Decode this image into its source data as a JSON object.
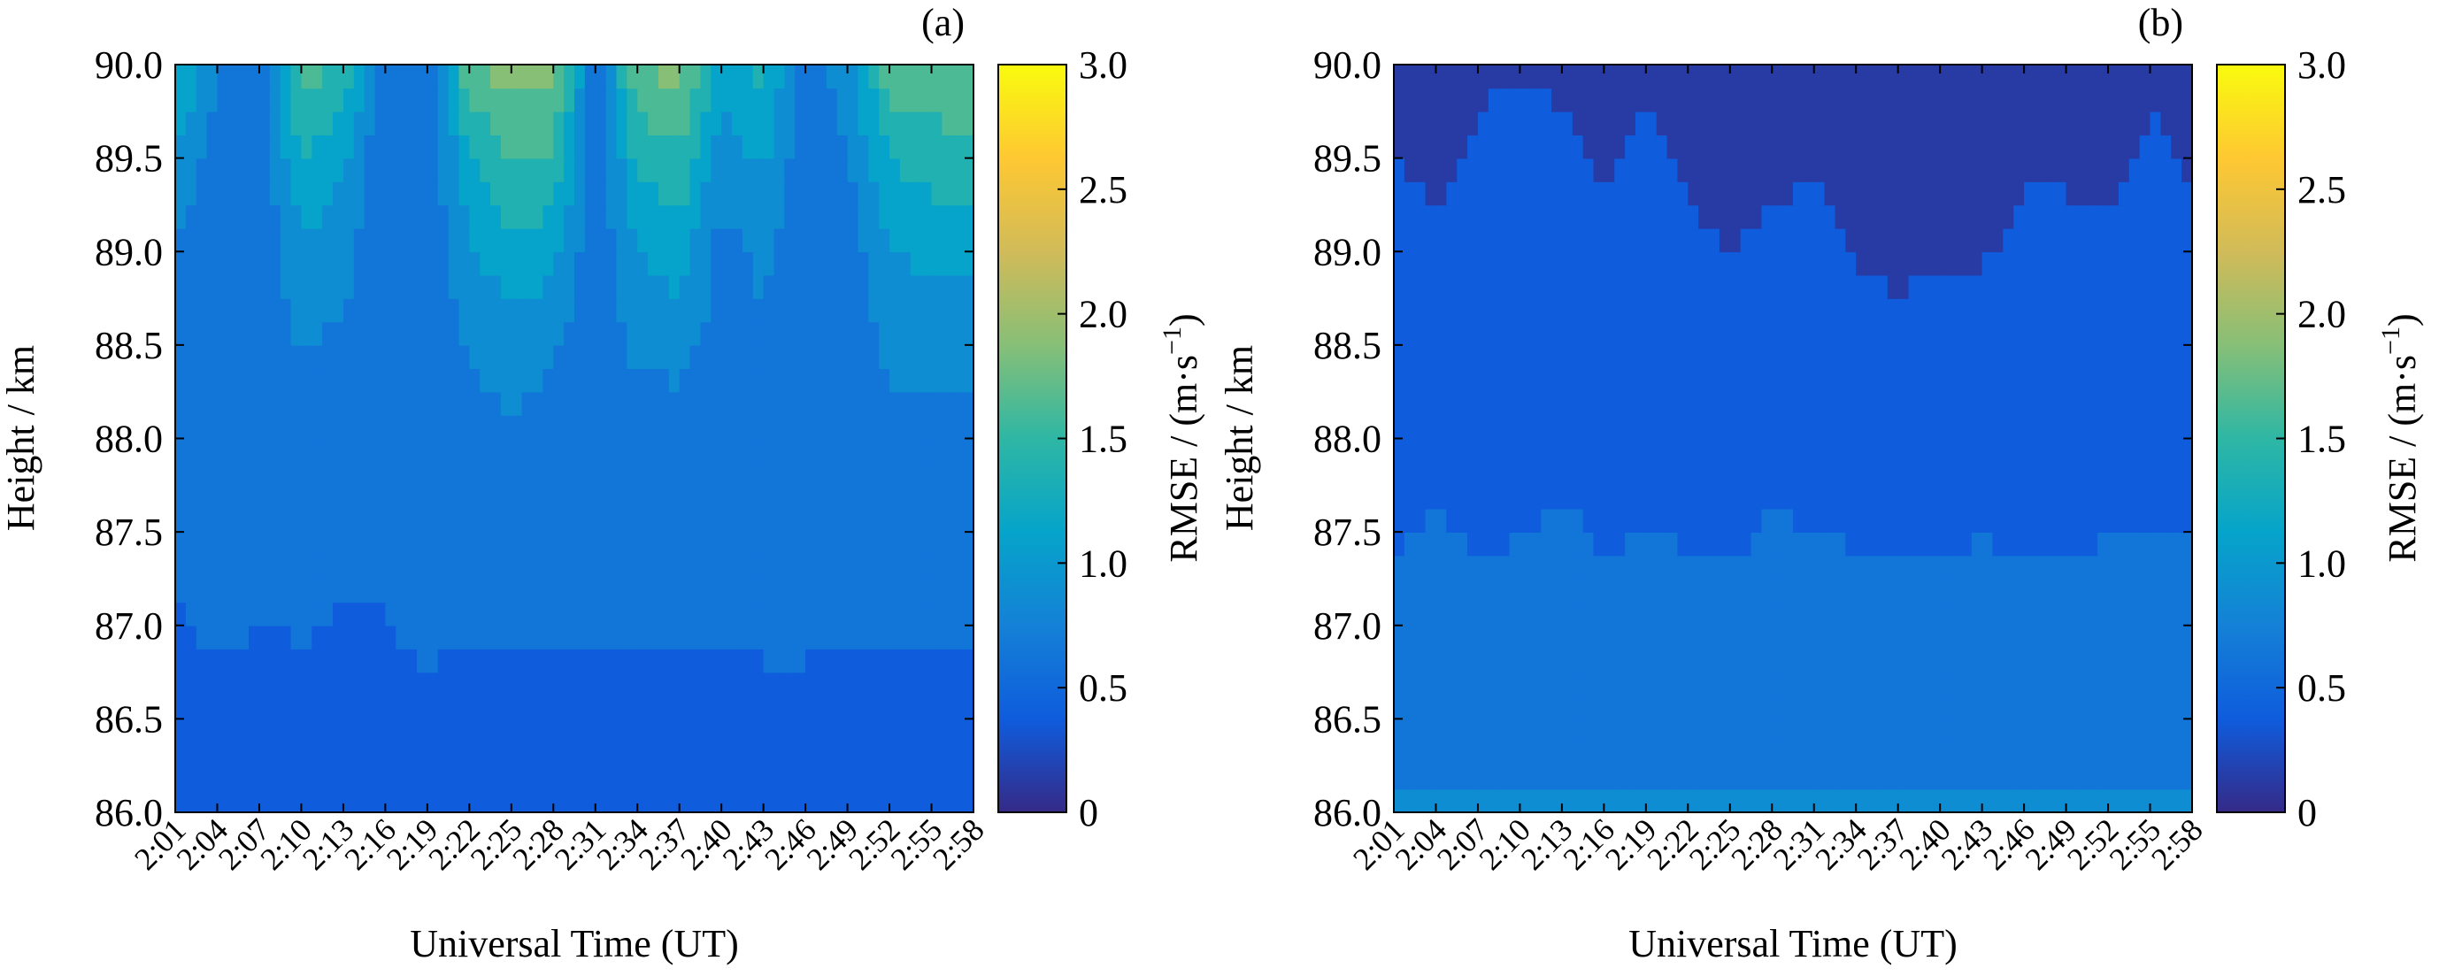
{
  "colormap": [
    "#352a87",
    "#0f5cdd",
    "#1481d6",
    "#06a4ca",
    "#2eb7a4",
    "#87bf77",
    "#d1bb59",
    "#fec832",
    "#f9fb0e"
  ],
  "chart_data": [
    {
      "type": "heatmap",
      "panel_label": "(a)",
      "xlabel": "Universal Time (UT)",
      "ylabel": "Height / km",
      "colorbar_label": "RMSE / (m·s",
      "colorbar_superscript": "−1",
      "colorbar_suffix": ")",
      "x": [
        "2:01",
        "2:04",
        "2:07",
        "2:10",
        "2:13",
        "2:16",
        "2:19",
        "2:22",
        "2:25",
        "2:28",
        "2:31",
        "2:34",
        "2:37",
        "2:40",
        "2:43",
        "2:46",
        "2:49",
        "2:52",
        "2:55",
        "2:58"
      ],
      "y": [
        86.0,
        86.5,
        87.0,
        87.5,
        88.0,
        88.5,
        89.0,
        89.5,
        90.0
      ],
      "yticklabels": [
        "86.0",
        "86.5",
        "87.0",
        "87.5",
        "88.0",
        "88.5",
        "89.0",
        "89.5",
        "90.0"
      ],
      "ylim": [
        86.0,
        90.0
      ],
      "clim": [
        0,
        3.0
      ],
      "cticks": [
        0,
        0.5,
        1.0,
        1.5,
        2.0,
        2.5,
        3.0
      ],
      "cticklabels": [
        "0",
        "0.5",
        "1.0",
        "1.5",
        "2.0",
        "2.5",
        "3.0"
      ],
      "z": [
        [
          0.35,
          0.36,
          0.35,
          0.35,
          0.35,
          0.35,
          0.36,
          0.35,
          0.35,
          0.35,
          0.35,
          0.35,
          0.35,
          0.36,
          0.35,
          0.35,
          0.35,
          0.35,
          0.35,
          0.35
        ],
        [
          0.38,
          0.4,
          0.39,
          0.4,
          0.38,
          0.39,
          0.45,
          0.4,
          0.41,
          0.4,
          0.39,
          0.4,
          0.42,
          0.4,
          0.42,
          0.42,
          0.42,
          0.42,
          0.41,
          0.41
        ],
        [
          0.48,
          0.55,
          0.5,
          0.52,
          0.48,
          0.5,
          0.55,
          0.52,
          0.53,
          0.52,
          0.52,
          0.55,
          0.53,
          0.52,
          0.55,
          0.55,
          0.52,
          0.55,
          0.53,
          0.55
        ],
        [
          0.52,
          0.56,
          0.55,
          0.56,
          0.55,
          0.5,
          0.55,
          0.56,
          0.55,
          0.58,
          0.56,
          0.58,
          0.58,
          0.56,
          0.58,
          0.58,
          0.56,
          0.58,
          0.58,
          0.58
        ],
        [
          0.55,
          0.56,
          0.55,
          0.66,
          0.55,
          0.5,
          0.56,
          0.62,
          0.68,
          0.62,
          0.55,
          0.63,
          0.64,
          0.6,
          0.6,
          0.56,
          0.56,
          0.66,
          0.64,
          0.64
        ],
        [
          0.58,
          0.55,
          0.55,
          0.76,
          0.7,
          0.5,
          0.55,
          0.78,
          0.92,
          0.8,
          0.55,
          0.8,
          0.82,
          0.62,
          0.7,
          0.56,
          0.56,
          0.82,
          0.86,
          0.86
        ],
        [
          0.7,
          0.55,
          0.55,
          0.95,
          0.85,
          0.5,
          0.55,
          0.95,
          1.15,
          1.1,
          0.55,
          1.0,
          1.15,
          0.66,
          0.82,
          0.56,
          0.6,
          0.98,
          1.08,
          1.08
        ],
        [
          0.95,
          0.6,
          0.55,
          1.25,
          1.05,
          0.5,
          0.55,
          1.2,
          1.5,
          1.48,
          0.55,
          1.3,
          1.45,
          0.85,
          1.05,
          0.56,
          0.72,
          1.25,
          1.35,
          1.4
        ],
        [
          1.35,
          0.8,
          0.55,
          1.65,
          1.45,
          0.5,
          0.55,
          1.7,
          1.9,
          1.85,
          0.55,
          1.75,
          1.85,
          1.1,
          1.35,
          0.56,
          0.9,
          1.65,
          1.7,
          1.75
        ]
      ]
    },
    {
      "type": "heatmap",
      "panel_label": "(b)",
      "xlabel": "Universal Time (UT)",
      "ylabel": "Height / km",
      "colorbar_label": "RMSE / (m·s",
      "colorbar_superscript": "−1",
      "colorbar_suffix": ")",
      "x": [
        "2:01",
        "2:04",
        "2:07",
        "2:10",
        "2:13",
        "2:16",
        "2:19",
        "2:22",
        "2:25",
        "2:28",
        "2:31",
        "2:34",
        "2:37",
        "2:40",
        "2:43",
        "2:46",
        "2:49",
        "2:52",
        "2:55",
        "2:58"
      ],
      "y": [
        86.0,
        86.5,
        87.0,
        87.5,
        88.0,
        88.5,
        89.0,
        89.5,
        90.0
      ],
      "yticklabels": [
        "86.0",
        "86.5",
        "87.0",
        "87.5",
        "88.0",
        "88.5",
        "89.0",
        "89.5",
        "90.0"
      ],
      "ylim": [
        86.0,
        90.0
      ],
      "clim": [
        0,
        3.0
      ],
      "cticks": [
        0,
        0.5,
        1.0,
        1.5,
        2.0,
        2.5,
        3.0
      ],
      "cticklabels": [
        "0",
        "0.5",
        "1.0",
        "1.5",
        "2.0",
        "2.5",
        "3.0"
      ],
      "z": [
        [
          0.78,
          0.78,
          0.78,
          0.78,
          0.78,
          0.78,
          0.78,
          0.78,
          0.78,
          0.78,
          0.78,
          0.78,
          0.78,
          0.78,
          0.78,
          0.78,
          0.78,
          0.78,
          0.78,
          0.78
        ],
        [
          0.68,
          0.7,
          0.68,
          0.68,
          0.69,
          0.68,
          0.69,
          0.68,
          0.68,
          0.7,
          0.69,
          0.68,
          0.68,
          0.68,
          0.68,
          0.68,
          0.68,
          0.69,
          0.69,
          0.69
        ],
        [
          0.58,
          0.62,
          0.57,
          0.59,
          0.61,
          0.57,
          0.6,
          0.58,
          0.56,
          0.62,
          0.6,
          0.58,
          0.56,
          0.58,
          0.59,
          0.58,
          0.57,
          0.6,
          0.6,
          0.59
        ],
        [
          0.48,
          0.52,
          0.48,
          0.49,
          0.53,
          0.48,
          0.5,
          0.48,
          0.46,
          0.52,
          0.5,
          0.48,
          0.46,
          0.48,
          0.49,
          0.48,
          0.47,
          0.49,
          0.5,
          0.49
        ],
        [
          0.4,
          0.42,
          0.4,
          0.42,
          0.44,
          0.4,
          0.42,
          0.39,
          0.38,
          0.43,
          0.41,
          0.38,
          0.36,
          0.39,
          0.4,
          0.39,
          0.38,
          0.41,
          0.41,
          0.4
        ],
        [
          0.35,
          0.34,
          0.34,
          0.36,
          0.37,
          0.34,
          0.35,
          0.32,
          0.31,
          0.34,
          0.34,
          0.3,
          0.28,
          0.31,
          0.32,
          0.33,
          0.32,
          0.33,
          0.35,
          0.33
        ],
        [
          0.3,
          0.28,
          0.29,
          0.32,
          0.31,
          0.28,
          0.31,
          0.26,
          0.25,
          0.27,
          0.29,
          0.24,
          0.22,
          0.24,
          0.24,
          0.28,
          0.27,
          0.27,
          0.3,
          0.29
        ],
        [
          0.25,
          0.22,
          0.26,
          0.28,
          0.26,
          0.24,
          0.26,
          0.24,
          0.23,
          0.22,
          0.24,
          0.18,
          0.16,
          0.17,
          0.18,
          0.24,
          0.24,
          0.22,
          0.26,
          0.24
        ],
        [
          0.22,
          0.16,
          0.24,
          0.24,
          0.24,
          0.24,
          0.24,
          0.22,
          0.24,
          0.18,
          0.22,
          0.14,
          0.14,
          0.14,
          0.14,
          0.22,
          0.22,
          0.18,
          0.24,
          0.22
        ]
      ]
    }
  ]
}
